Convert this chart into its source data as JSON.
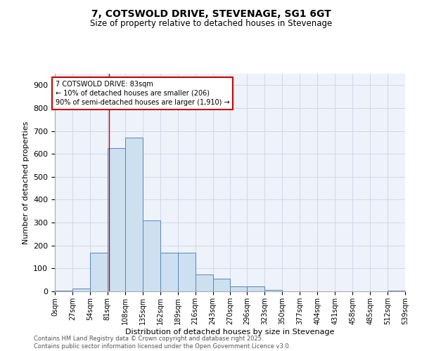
{
  "title": "7, COTSWOLD DRIVE, STEVENAGE, SG1 6GT",
  "subtitle": "Size of property relative to detached houses in Stevenage",
  "xlabel": "Distribution of detached houses by size in Stevenage",
  "ylabel": "Number of detached properties",
  "bin_edges": [
    0,
    27,
    54,
    81,
    108,
    135,
    162,
    189,
    216,
    243,
    270,
    296,
    323,
    350,
    377,
    404,
    431,
    458,
    485,
    512,
    539
  ],
  "counts": [
    3,
    12,
    170,
    625,
    670,
    310,
    170,
    170,
    75,
    55,
    20,
    20,
    5,
    0,
    0,
    0,
    0,
    0,
    0,
    3
  ],
  "bar_facecolor": "#cce0f0",
  "bar_edgecolor": "#5588bb",
  "grid_color": "#d0d8e8",
  "background_color": "#eef2fa",
  "red_line_x": 83,
  "annotation_text": "7 COTSWOLD DRIVE: 83sqm\n← 10% of detached houses are smaller (206)\n90% of semi-detached houses are larger (1,910) →",
  "annotation_box_color": "#ffffff",
  "annotation_border_color": "#cc0000",
  "ylim": [
    0,
    950
  ],
  "yticks": [
    0,
    100,
    200,
    300,
    400,
    500,
    600,
    700,
    800,
    900
  ],
  "footer_line1": "Contains HM Land Registry data © Crown copyright and database right 2025.",
  "footer_line2": "Contains public sector information licensed under the Open Government Licence v3.0."
}
